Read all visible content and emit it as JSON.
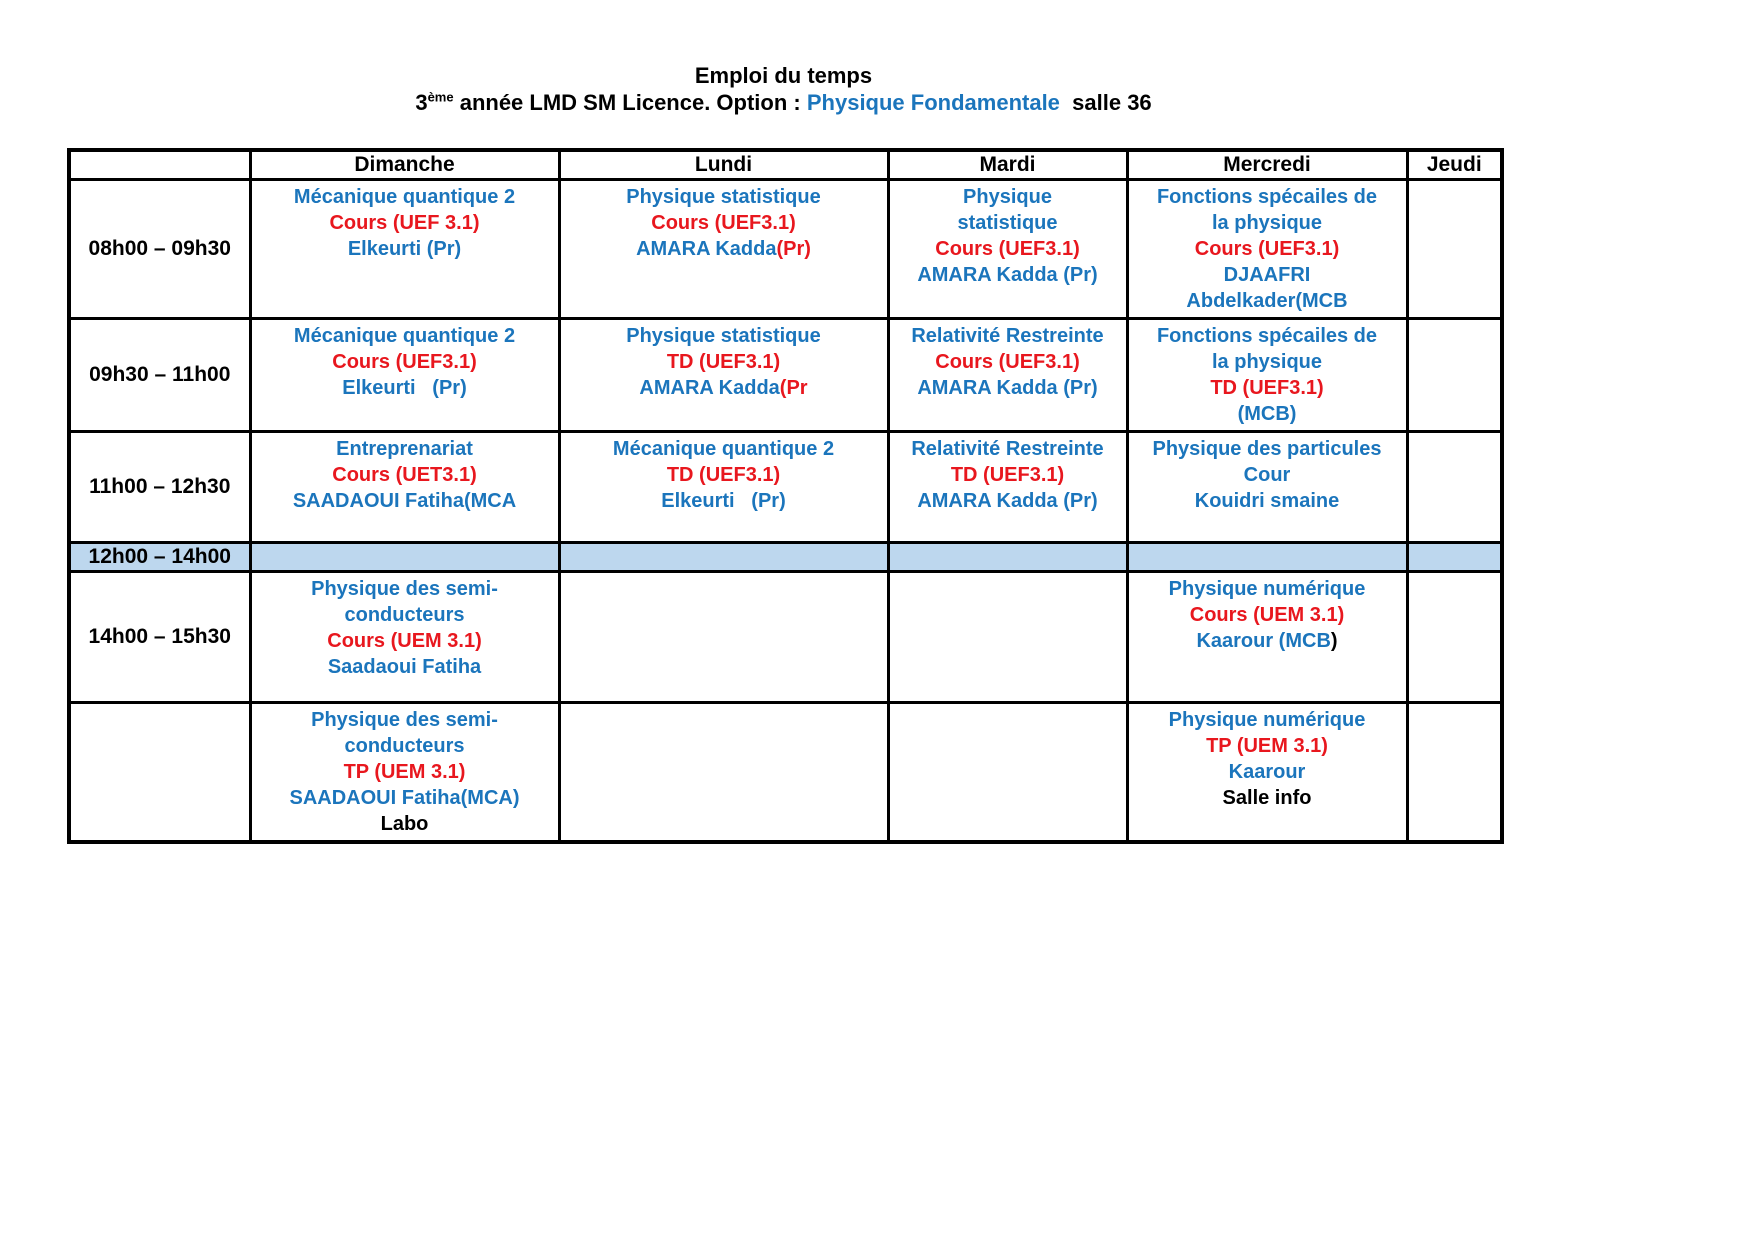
{
  "page": {
    "title": "Emploi du temps",
    "subtitle": {
      "prefix": "3",
      "superscript": "ème",
      "middle": " année LMD SM Licence. Option : ",
      "highlight": "Physique Fondamentale",
      "suffix": "  salle 36"
    }
  },
  "colors": {
    "blue": "#1B75BC",
    "red": "#E8171E",
    "black": "#000000",
    "title_highlight": "#1B75BC",
    "lunch_bg": "#BDD7EE",
    "border": "#000000"
  },
  "table": {
    "columns": [
      "",
      "Dimanche",
      "Lundi",
      "Mardi",
      "Mercredi",
      "Jeudi"
    ],
    "rows": [
      {
        "time": "08h00 – 09h30",
        "lunch": false,
        "cells": [
          {
            "lines": [
              [
                {
                  "t": "Mécanique quantique 2",
                  "c": "blue"
                }
              ],
              [
                {
                  "t": "Cours (UEF 3.1)",
                  "c": "red"
                }
              ],
              [
                {
                  "t": "Elkeurti (Pr)",
                  "c": "blue"
                }
              ]
            ]
          },
          {
            "lines": [
              [
                {
                  "t": "Physique statistique",
                  "c": "blue"
                }
              ],
              [
                {
                  "t": "Cours (UEF3.1)",
                  "c": "red"
                }
              ],
              [
                {
                  "t": "AMARA Kadda",
                  "c": "blue"
                },
                {
                  "t": "(Pr)",
                  "c": "red"
                }
              ]
            ]
          },
          {
            "lines": [
              [
                {
                  "t": "Physique",
                  "c": "blue"
                }
              ],
              [
                {
                  "t": "statistique",
                  "c": "blue"
                }
              ],
              [
                {
                  "t": "Cours (UEF3.1)",
                  "c": "red"
                }
              ],
              [
                {
                  "t": "AMARA Kadda (Pr)",
                  "c": "blue"
                }
              ]
            ]
          },
          {
            "lines": [
              [
                {
                  "t": "Fonctions spécailes de",
                  "c": "blue"
                }
              ],
              [
                {
                  "t": "la physique",
                  "c": "blue"
                }
              ],
              [
                {
                  "t": "Cours (UEF3.1)",
                  "c": "red"
                }
              ],
              [
                {
                  "t": "DJAAFRI",
                  "c": "blue"
                }
              ],
              [
                {
                  "t": "Abdelkader(MCB",
                  "c": "blue"
                }
              ]
            ]
          },
          {
            "lines": []
          }
        ]
      },
      {
        "time": "09h30 – 11h00",
        "lunch": false,
        "cells": [
          {
            "lines": [
              [
                {
                  "t": "Mécanique quantique 2",
                  "c": "blue"
                }
              ],
              [
                {
                  "t": "Cours (UEF3.1)",
                  "c": "red"
                }
              ],
              [
                {
                  "t": "Elkeurti   (Pr)",
                  "c": "blue"
                }
              ]
            ]
          },
          {
            "lines": [
              [
                {
                  "t": "Physique statistique",
                  "c": "blue"
                }
              ],
              [
                {
                  "t": "TD (UEF3.1)",
                  "c": "red"
                }
              ],
              [
                {
                  "t": "AMARA Kadda",
                  "c": "blue"
                },
                {
                  "t": "(Pr",
                  "c": "red"
                }
              ]
            ]
          },
          {
            "lines": [
              [
                {
                  "t": "Relativité Restreinte",
                  "c": "blue"
                }
              ],
              [
                {
                  "t": "Cours (UEF3.1)",
                  "c": "red"
                }
              ],
              [
                {
                  "t": "AMARA Kadda (Pr)",
                  "c": "blue"
                }
              ]
            ]
          },
          {
            "lines": [
              [
                {
                  "t": "Fonctions spécailes de",
                  "c": "blue"
                }
              ],
              [
                {
                  "t": "la physique",
                  "c": "blue"
                }
              ],
              [
                {
                  "t": "TD (UEF3.1)",
                  "c": "red"
                }
              ],
              [
                {
                  "t": "(MCB)",
                  "c": "blue"
                }
              ]
            ]
          },
          {
            "lines": []
          }
        ]
      },
      {
        "time": "11h00 – 12h30",
        "lunch": false,
        "cells": [
          {
            "lines": [
              [
                {
                  "t": "Entreprenariat",
                  "c": "blue"
                }
              ],
              [
                {
                  "t": "Cours (UET3.1)",
                  "c": "red"
                }
              ],
              [
                {
                  "t": "SAADAOUI Fatiha(MCA",
                  "c": "blue"
                }
              ]
            ]
          },
          {
            "lines": [
              [
                {
                  "t": "Mécanique quantique 2",
                  "c": "blue"
                }
              ],
              [
                {
                  "t": "TD (UEF3.1)",
                  "c": "red"
                }
              ],
              [
                {
                  "t": "Elkeurti   (Pr)",
                  "c": "blue"
                }
              ]
            ]
          },
          {
            "lines": [
              [
                {
                  "t": "Relativité Restreinte",
                  "c": "blue"
                }
              ],
              [
                {
                  "t": "TD (UEF3.1)",
                  "c": "red"
                }
              ],
              [
                {
                  "t": "AMARA Kadda (Pr)",
                  "c": "blue"
                }
              ]
            ]
          },
          {
            "lines": [
              [
                {
                  "t": "Physique des particules",
                  "c": "blue"
                }
              ],
              [
                {
                  "t": "Cour",
                  "c": "blue"
                }
              ],
              [
                {
                  "t": "Kouidri smaine",
                  "c": "blue"
                }
              ]
            ]
          },
          {
            "lines": []
          }
        ]
      },
      {
        "time": "12h00 – 14h00",
        "lunch": true,
        "cells": [
          {
            "lines": []
          },
          {
            "lines": []
          },
          {
            "lines": []
          },
          {
            "lines": []
          },
          {
            "lines": []
          }
        ]
      },
      {
        "time": "14h00 – 15h30",
        "lunch": false,
        "cells": [
          {
            "lines": [
              [
                {
                  "t": "Physique des semi-",
                  "c": "blue"
                }
              ],
              [
                {
                  "t": "conducteurs",
                  "c": "blue"
                }
              ],
              [
                {
                  "t": "Cours (UEM 3.1)",
                  "c": "red"
                }
              ],
              [
                {
                  "t": "Saadaoui Fatiha",
                  "c": "blue"
                }
              ]
            ]
          },
          {
            "lines": []
          },
          {
            "lines": []
          },
          {
            "lines": [
              [
                {
                  "t": "Physique numérique",
                  "c": "blue"
                }
              ],
              [
                {
                  "t": "Cours (UEM 3.1)",
                  "c": "red"
                }
              ],
              [
                {
                  "t": "Kaarour (MCB",
                  "c": "blue"
                },
                {
                  "t": ")",
                  "c": "black"
                }
              ]
            ]
          },
          {
            "lines": []
          }
        ]
      },
      {
        "time": "",
        "lunch": false,
        "cells": [
          {
            "lines": [
              [
                {
                  "t": "Physique des semi-",
                  "c": "blue"
                }
              ],
              [
                {
                  "t": "conducteurs",
                  "c": "blue"
                }
              ],
              [
                {
                  "t": "TP (UEM 3.1)",
                  "c": "red"
                }
              ],
              [
                {
                  "t": "SAADAOUI Fatiha(MCA)",
                  "c": "blue"
                }
              ],
              [
                {
                  "t": "Labo",
                  "c": "black"
                }
              ]
            ]
          },
          {
            "lines": []
          },
          {
            "lines": []
          },
          {
            "lines": [
              [
                {
                  "t": "Physique numérique",
                  "c": "blue"
                }
              ],
              [
                {
                  "t": "TP (UEM 3.1)",
                  "c": "red"
                }
              ],
              [
                {
                  "t": "Kaarour",
                  "c": "blue"
                }
              ],
              [
                {
                  "t": "Salle info",
                  "c": "black"
                }
              ]
            ]
          },
          {
            "lines": []
          }
        ]
      }
    ]
  }
}
